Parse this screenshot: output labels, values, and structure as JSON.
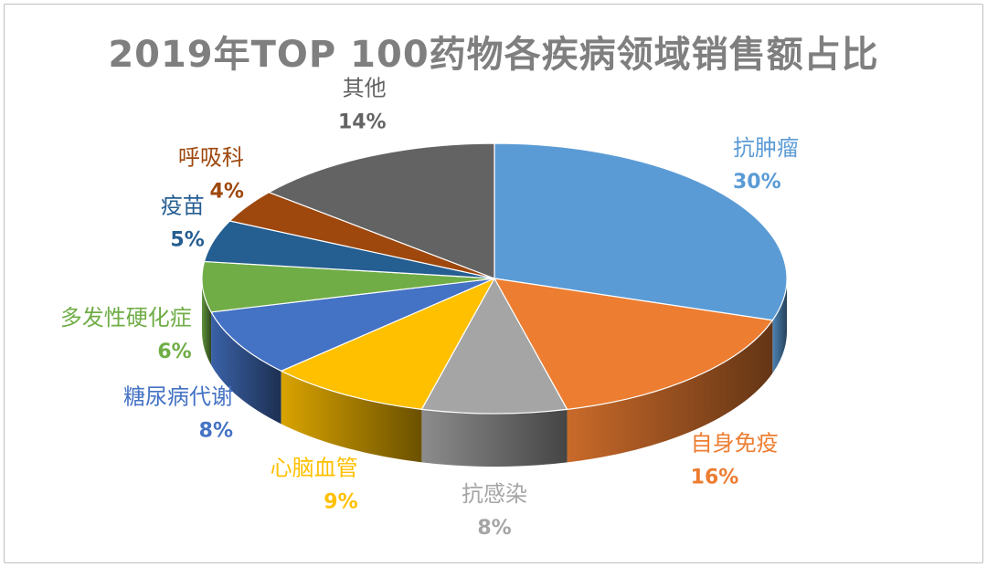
{
  "chart_data": {
    "type": "pie",
    "title": "2019年TOP 100药物各疾病领域销售额占比",
    "slices": [
      {
        "label": "抗肿瘤",
        "value": 30,
        "value_label": "30%",
        "color": "#5b9bd5"
      },
      {
        "label": "自身免疫",
        "value": 16,
        "value_label": "16%",
        "color": "#ed7d31"
      },
      {
        "label": "抗感染",
        "value": 8,
        "value_label": "8%",
        "color": "#a5a5a5"
      },
      {
        "label": "心脑血管",
        "value": 9,
        "value_label": "9%",
        "color": "#ffc000"
      },
      {
        "label": "糖尿病代谢",
        "value": 8,
        "value_label": "8%",
        "color": "#4472c4"
      },
      {
        "label": "多发性硬化症",
        "value": 6,
        "value_label": "6%",
        "color": "#70ad47"
      },
      {
        "label": "疫苗",
        "value": 5,
        "value_label": "5%",
        "color": "#255e91"
      },
      {
        "label": "呼吸科",
        "value": 4,
        "value_label": "4%",
        "color": "#9e480e"
      },
      {
        "label": "其他",
        "value": 14,
        "value_label": "14%",
        "color": "#636363"
      }
    ]
  }
}
